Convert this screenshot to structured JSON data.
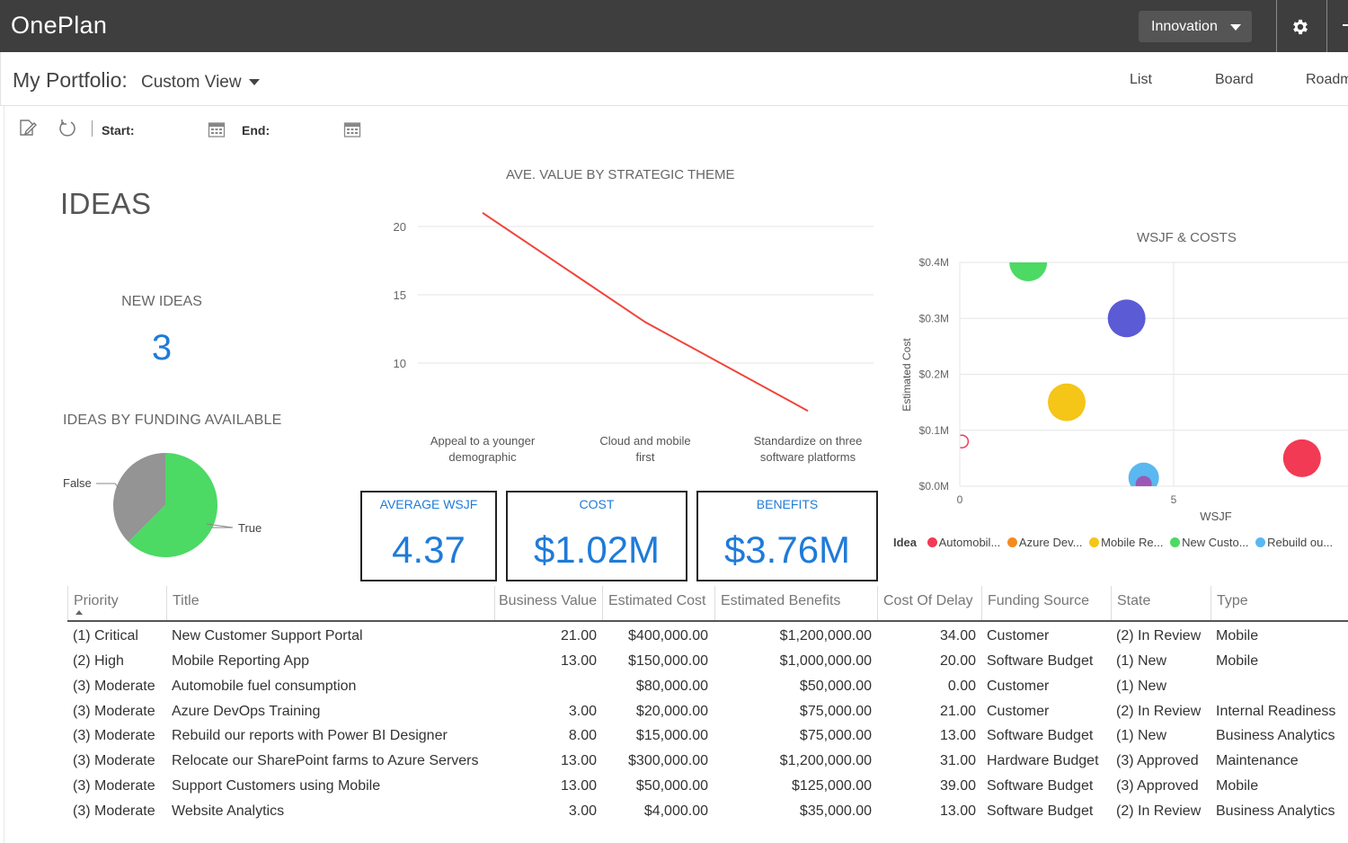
{
  "app": {
    "title": "OnePlan",
    "workspace": "Innovation"
  },
  "header": {
    "portfolio_label": "My Portfolio:",
    "view": "Custom View",
    "nav": [
      "List",
      "Board",
      "Roadm"
    ]
  },
  "toolbar": {
    "start_label": "Start:",
    "end_label": "End:"
  },
  "ideas": {
    "title": "IDEAS",
    "new_ideas_label": "NEW IDEAS",
    "new_ideas_value": "3",
    "funding_title": "IDEAS BY FUNDING AVAILABLE"
  },
  "cards": [
    {
      "label": "AVERAGE WSJF",
      "value": "4.37"
    },
    {
      "label": "COST",
      "value": "$1.02M"
    },
    {
      "label": "BENEFITS",
      "value": "$3.76M"
    }
  ],
  "chart_data": [
    {
      "type": "pie",
      "title": "IDEAS BY FUNDING AVAILABLE",
      "labels": [
        "False",
        "True"
      ],
      "values": [
        3,
        5
      ],
      "colors": [
        "#949494",
        "#4cd964"
      ]
    },
    {
      "type": "line",
      "title": "AVE. VALUE BY STRATEGIC THEME",
      "categories": [
        "Appeal to a younger demographic",
        "Cloud and mobile first",
        "Standardize on three software platforms"
      ],
      "category_lines": [
        [
          "Appeal to a younger",
          "demographic"
        ],
        [
          "Cloud and mobile",
          "first"
        ],
        [
          "Standardize on three",
          "software platforms"
        ]
      ],
      "y_ticks": [
        "20",
        "15",
        "10"
      ],
      "y_tick_values": [
        20,
        15,
        10
      ],
      "ylim": [
        5,
        21.5
      ],
      "series": [
        {
          "values": [
            21,
            13,
            6.5
          ],
          "color": "#f0443a"
        }
      ]
    },
    {
      "type": "scatter",
      "title": "WSJF & COSTS",
      "xlabel": "WSJF",
      "ylabel": "Estimated Cost",
      "x_ticks": [
        "0",
        "5"
      ],
      "x_tick_values": [
        0,
        5
      ],
      "y_ticks": [
        "$0.0M",
        "$0.1M",
        "$0.2M",
        "$0.3M",
        "$0.4M"
      ],
      "y_tick_values": [
        0,
        0.1,
        0.2,
        0.3,
        0.4
      ],
      "xlim": [
        0,
        9.2
      ],
      "ylim": [
        0,
        0.4
      ],
      "points": [
        {
          "x": 0.05,
          "y": 0.08,
          "color": "#f23a55",
          "hollow": true
        },
        {
          "x": 1.6,
          "y": 0.4,
          "color": "#4cd964"
        },
        {
          "x": 3.9,
          "y": 0.3,
          "color": "#5b5bd6"
        },
        {
          "x": 2.5,
          "y": 0.15,
          "color": "#f5c518"
        },
        {
          "x": 8.0,
          "y": 0.05,
          "color": "#f23a55"
        },
        {
          "x": 4.3,
          "y": 0.015,
          "color": "#5ab8f0"
        },
        {
          "x": 4.3,
          "y": 0.004,
          "color": "#9b59b6"
        }
      ]
    }
  ],
  "legend": {
    "title": "Idea",
    "items": [
      {
        "label": "Automobil...",
        "color": "#f23a55"
      },
      {
        "label": "Azure Dev...",
        "color": "#f58b1f"
      },
      {
        "label": "Mobile Re...",
        "color": "#f5c518"
      },
      {
        "label": "New Custo...",
        "color": "#4cd964"
      },
      {
        "label": "Rebuild ou...",
        "color": "#5ab8f0"
      }
    ]
  },
  "table": {
    "columns": [
      "Priority",
      "Title",
      "Business Value",
      "Estimated Cost",
      "Estimated Benefits",
      "Cost Of Delay",
      "Funding Source",
      "State",
      "Type"
    ],
    "rows": [
      [
        "(1) Critical",
        "New Customer Support Portal",
        "21.00",
        "$400,000.00",
        "$1,200,000.00",
        "34.00",
        "Customer",
        "(2) In Review",
        "Mobile"
      ],
      [
        "(2) High",
        "Mobile Reporting App",
        "13.00",
        "$150,000.00",
        "$1,000,000.00",
        "20.00",
        "Software Budget",
        "(1) New",
        "Mobile"
      ],
      [
        "(3) Moderate",
        "Automobile fuel consumption",
        "",
        "$80,000.00",
        "$50,000.00",
        "0.00",
        "Customer",
        "(1) New",
        ""
      ],
      [
        "(3) Moderate",
        "Azure DevOps Training",
        "3.00",
        "$20,000.00",
        "$75,000.00",
        "21.00",
        "Customer",
        "(2) In Review",
        "Internal Readiness"
      ],
      [
        "(3) Moderate",
        "Rebuild our reports with Power BI Designer",
        "8.00",
        "$15,000.00",
        "$75,000.00",
        "13.00",
        "Software Budget",
        "(1) New",
        "Business Analytics"
      ],
      [
        "(3) Moderate",
        "Relocate our SharePoint farms to Azure Servers",
        "13.00",
        "$300,000.00",
        "$1,200,000.00",
        "31.00",
        "Hardware Budget",
        "(3) Approved",
        "Maintenance"
      ],
      [
        "(3) Moderate",
        "Support Customers using Mobile",
        "13.00",
        "$50,000.00",
        "$125,000.00",
        "39.00",
        "Software Budget",
        "(3) Approved",
        "Mobile"
      ],
      [
        "(3) Moderate",
        "Website Analytics",
        "3.00",
        "$4,000.00",
        "$35,000.00",
        "13.00",
        "Software Budget",
        "(2) In Review",
        "Business Analytics"
      ]
    ]
  }
}
